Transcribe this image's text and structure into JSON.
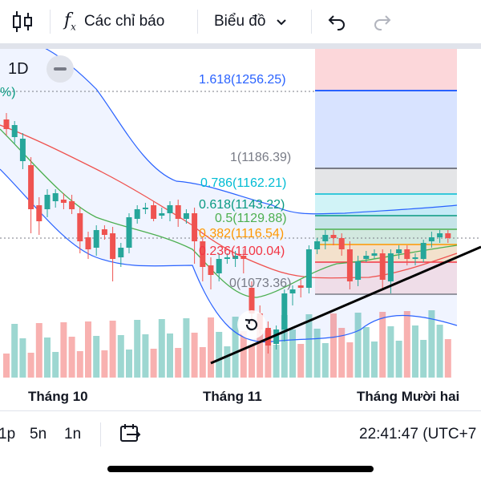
{
  "toolbar": {
    "indicators_label": "Các chỉ báo",
    "chart_type_label": "Biểu đồ"
  },
  "chart": {
    "interval_badge": "1D",
    "percent_fragment": "%)",
    "fib_levels": [
      {
        "label": "1.618(1256.25)",
        "color": "#2962ff"
      },
      {
        "label": "1(1186.39)",
        "color": "#787b86"
      },
      {
        "label": "0.786(1162.21)",
        "color": "#00bcd4"
      },
      {
        "label": "0.618(1143.22)",
        "color": "#089981"
      },
      {
        "label": "0.5(1129.88)",
        "color": "#4caf50"
      },
      {
        "label": "0.382(1116.54)",
        "color": "#ff9800"
      },
      {
        "label": "0.236(1100.04)",
        "color": "#f23645"
      },
      {
        "label": "0(1073.36)",
        "color": "#787b86"
      }
    ]
  },
  "xaxis": {
    "labels": [
      "Tháng 10",
      "Tháng 11",
      "Tháng Mười hai"
    ]
  },
  "bottom": {
    "ranges": [
      "1p",
      "5n",
      "1n"
    ],
    "time": "22:41:47 (UTC+7"
  },
  "colors": {
    "up": "#26a69a",
    "down": "#ef5350",
    "bollinger": "#2962ff",
    "trendline": "#000000"
  }
}
